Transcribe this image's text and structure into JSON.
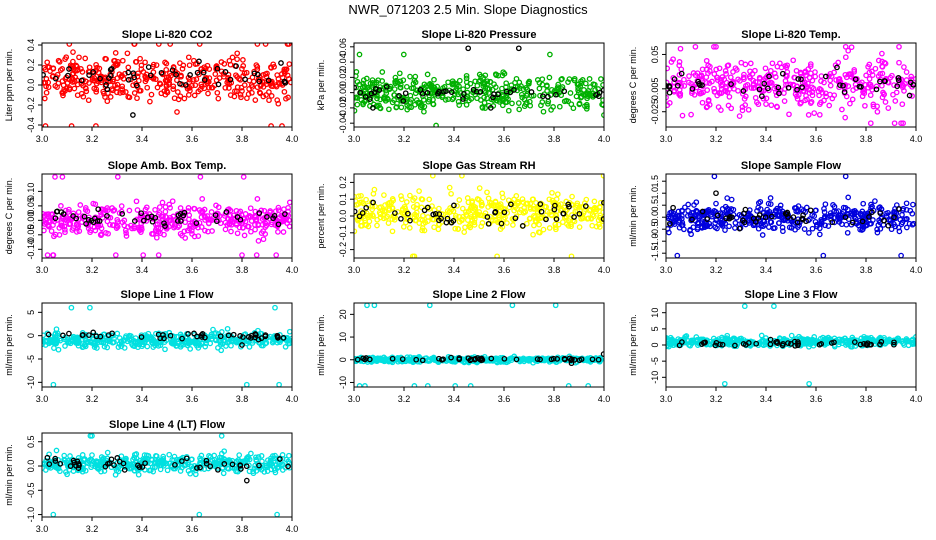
{
  "figure": {
    "title": "NWR_071203  2.5 Min. Slope Diagnostics"
  },
  "chart_data": [
    {
      "type": "scatter",
      "title": "Slope Li-820 CO2",
      "xlabel": "",
      "ylabel": "Liter ppm per min.",
      "xlim": [
        3.0,
        4.0
      ],
      "ylim": [
        -0.42,
        0.42
      ],
      "xticks": [
        3.0,
        3.2,
        3.4,
        3.6,
        3.8,
        4.0
      ],
      "xtick_labels": [
        "3.0",
        "3.2",
        "3.4",
        "3.6",
        "3.8",
        "4.0"
      ],
      "yticks": [
        -0.4,
        -0.2,
        0.0,
        0.2,
        0.4
      ],
      "ytick_labels": [
        "-0.4",
        "-0.2",
        "0.0",
        "0.2",
        "0.4"
      ],
      "series": [
        {
          "color": "#ff0000",
          "center": 0.05,
          "spread": 0.2,
          "min": -0.41,
          "max": 0.41,
          "count": 420
        },
        {
          "color": "#000000",
          "center": 0.06,
          "spread": 0.12,
          "min": -0.3,
          "max": 0.36,
          "count": 45
        }
      ]
    },
    {
      "type": "scatter",
      "title": "Slope Li-820 Pressure",
      "xlabel": "",
      "ylabel": "kPa per min.",
      "xlim": [
        3.0,
        4.0
      ],
      "ylim": [
        -0.045,
        0.065
      ],
      "xticks": [
        3.0,
        3.2,
        3.4,
        3.6,
        3.8,
        4.0
      ],
      "xtick_labels": [
        "3.0",
        "3.2",
        "3.4",
        "3.6",
        "3.8",
        "4.0"
      ],
      "yticks": [
        -0.04,
        -0.02,
        0.0,
        0.02,
        0.04,
        0.06
      ],
      "ytick_labels": [
        "-0.04",
        "-0.02",
        "0.00",
        "0.02",
        "0.04",
        "0.06"
      ],
      "series": [
        {
          "color": "#00b000",
          "center": 0.0,
          "spread": 0.022,
          "min": -0.043,
          "max": 0.05,
          "count": 420
        },
        {
          "color": "#000000",
          "center": 0.0,
          "spread": 0.01,
          "min": -0.02,
          "max": 0.058,
          "count": 45
        }
      ]
    },
    {
      "type": "scatter",
      "title": "Slope Li-820 Temp.",
      "xlabel": "",
      "ylabel": "degrees C per min.",
      "xlim": [
        3.0,
        4.0
      ],
      "ylim": [
        -0.045,
        0.065
      ],
      "xticks": [
        3.0,
        3.2,
        3.4,
        3.6,
        3.8,
        4.0
      ],
      "xtick_labels": [
        "3.0",
        "3.2",
        "3.4",
        "3.6",
        "3.8",
        "4.0"
      ],
      "yticks": [
        -0.025,
        0.005,
        0.05
      ],
      "ytick_labels": [
        "-0.025",
        "0.005",
        "0.05"
      ],
      "series": [
        {
          "color": "#ff00ff",
          "center": 0.01,
          "spread": 0.03,
          "min": -0.04,
          "max": 0.06,
          "count": 420
        },
        {
          "color": "#000000",
          "center": 0.01,
          "spread": 0.015,
          "min": -0.02,
          "max": 0.04,
          "count": 45
        }
      ]
    },
    {
      "type": "scatter",
      "title": "Slope Amb. Box Temp.",
      "xlabel": "",
      "ylabel": "degrees C per min.",
      "xlim": [
        3.0,
        4.0
      ],
      "ylim": [
        -0.13,
        0.16
      ],
      "xticks": [
        3.0,
        3.2,
        3.4,
        3.6,
        3.8,
        4.0
      ],
      "xtick_labels": [
        "3.0",
        "3.2",
        "3.4",
        "3.6",
        "3.8",
        "4.0"
      ],
      "yticks": [
        -0.1,
        -0.05,
        0.0,
        0.05,
        0.1
      ],
      "ytick_labels": [
        "-0.10",
        "-0.05",
        "0.00",
        "0.05",
        "0.10"
      ],
      "series": [
        {
          "color": "#ff00ff",
          "center": 0.0,
          "spread": 0.05,
          "min": -0.12,
          "max": 0.15,
          "count": 420
        },
        {
          "color": "#000000",
          "center": 0.01,
          "spread": 0.025,
          "min": -0.08,
          "max": 0.1,
          "count": 45
        }
      ]
    },
    {
      "type": "scatter",
      "title": "Slope Gas Stream RH",
      "xlabel": "",
      "ylabel": "percent per min.",
      "xlim": [
        3.0,
        4.0
      ],
      "ylim": [
        -0.25,
        0.25
      ],
      "xticks": [
        3.0,
        3.2,
        3.4,
        3.6,
        3.8,
        4.0
      ],
      "xtick_labels": [
        "3.0",
        "3.2",
        "3.4",
        "3.6",
        "3.8",
        "4.0"
      ],
      "yticks": [
        -0.2,
        -0.1,
        0.0,
        0.1,
        0.2
      ],
      "ytick_labels": [
        "-0.2",
        "-0.1",
        "0.0",
        "0.1",
        "0.2"
      ],
      "series": [
        {
          "color": "#ffff00",
          "center": 0.02,
          "spread": 0.1,
          "min": -0.24,
          "max": 0.24,
          "count": 420
        },
        {
          "color": "#000000",
          "center": 0.01,
          "spread": 0.06,
          "min": -0.16,
          "max": 0.1,
          "count": 45
        }
      ]
    },
    {
      "type": "scatter",
      "title": "Slope Sample Flow",
      "xlabel": "",
      "ylabel": "ml/min per min.",
      "xlim": [
        3.0,
        4.0
      ],
      "ylim": [
        -1.7,
        1.8
      ],
      "xticks": [
        3.0,
        3.2,
        3.4,
        3.6,
        3.8,
        4.0
      ],
      "xtick_labels": [
        "3.0",
        "3.2",
        "3.4",
        "3.6",
        "3.8",
        "4.0"
      ],
      "yticks": [
        -1.5,
        -1.0,
        -0.5,
        0.0,
        0.5,
        1.0,
        1.5
      ],
      "ytick_labels": [
        "-1.5",
        "-1.0",
        "-0.5",
        "0.0",
        "0.5",
        "1.0",
        "1.5"
      ],
      "series": [
        {
          "color": "#0000dd",
          "center": 0.0,
          "spread": 0.55,
          "min": -1.6,
          "max": 1.7,
          "count": 420
        },
        {
          "color": "#000000",
          "center": 0.0,
          "spread": 0.35,
          "min": -1.0,
          "max": 1.0,
          "count": 45
        }
      ]
    },
    {
      "type": "scatter",
      "title": "Slope Line 1 Flow",
      "xlabel": "",
      "ylabel": "ml/min per min.",
      "xlim": [
        3.0,
        4.0
      ],
      "ylim": [
        -11,
        7
      ],
      "xticks": [
        3.0,
        3.2,
        3.4,
        3.6,
        3.8,
        4.0
      ],
      "xtick_labels": [
        "3.0",
        "3.2",
        "3.4",
        "3.6",
        "3.8",
        "4.0"
      ],
      "yticks": [
        -10,
        -5,
        0,
        5
      ],
      "ytick_labels": [
        "-10",
        "-5",
        "0",
        "5"
      ],
      "series": [
        {
          "color": "#00e0e0",
          "center": -1.0,
          "spread": 1.5,
          "min": -10.5,
          "max": 6.0,
          "count": 420
        },
        {
          "color": "#000000",
          "center": 0.0,
          "spread": 0.6,
          "min": -2.0,
          "max": 1.5,
          "count": 45
        }
      ]
    },
    {
      "type": "scatter",
      "title": "Slope Line 2 Flow",
      "xlabel": "",
      "ylabel": "ml/min per min.",
      "xlim": [
        3.0,
        4.0
      ],
      "ylim": [
        -12,
        25
      ],
      "xticks": [
        3.0,
        3.2,
        3.4,
        3.6,
        3.8,
        4.0
      ],
      "xtick_labels": [
        "3.0",
        "3.2",
        "3.4",
        "3.6",
        "3.8",
        "4.0"
      ],
      "yticks": [
        -10,
        0,
        10,
        20
      ],
      "ytick_labels": [
        "-10",
        "0",
        "10",
        "20"
      ],
      "series": [
        {
          "color": "#00e0e0",
          "center": 0.0,
          "spread": 1.0,
          "min": -11.5,
          "max": 24.0,
          "count": 420
        },
        {
          "color": "#000000",
          "center": 0.3,
          "spread": 0.6,
          "min": -1.5,
          "max": 2.5,
          "count": 45
        }
      ]
    },
    {
      "type": "scatter",
      "title": "Slope Line 3 Flow",
      "xlabel": "",
      "ylabel": "ml/min per min.",
      "xlim": [
        3.0,
        4.0
      ],
      "ylim": [
        -13,
        13
      ],
      "xticks": [
        3.0,
        3.2,
        3.4,
        3.6,
        3.8,
        4.0
      ],
      "xtick_labels": [
        "3.0",
        "3.2",
        "3.4",
        "3.6",
        "3.8",
        "4.0"
      ],
      "yticks": [
        -10,
        -5,
        0,
        5,
        10
      ],
      "ytick_labels": [
        "-10",
        "-5",
        "0",
        "5",
        "10"
      ],
      "series": [
        {
          "color": "#00e0e0",
          "center": 1.0,
          "spread": 1.3,
          "min": -12.0,
          "max": 12.0,
          "count": 420
        },
        {
          "color": "#000000",
          "center": 0.5,
          "spread": 0.8,
          "min": -2.0,
          "max": 3.0,
          "count": 45
        }
      ]
    },
    {
      "type": "scatter",
      "title": "Slope Line 4 (LT) Flow",
      "xlabel": "",
      "ylabel": "ml/min per min.",
      "xlim": [
        3.0,
        4.0
      ],
      "ylim": [
        -1.05,
        0.68
      ],
      "xticks": [
        3.0,
        3.2,
        3.4,
        3.6,
        3.8,
        4.0
      ],
      "xtick_labels": [
        "3.0",
        "3.2",
        "3.4",
        "3.6",
        "3.8",
        "4.0"
      ],
      "yticks": [
        -1.0,
        -0.5,
        0.0,
        0.5
      ],
      "ytick_labels": [
        "-1.0",
        "-0.5",
        "0.0",
        "0.5"
      ],
      "series": [
        {
          "color": "#00e0e0",
          "center": 0.05,
          "spread": 0.17,
          "min": -1.0,
          "max": 0.62,
          "count": 420
        },
        {
          "color": "#000000",
          "center": 0.05,
          "spread": 0.12,
          "min": -0.3,
          "max": 0.45,
          "count": 45
        }
      ]
    }
  ]
}
